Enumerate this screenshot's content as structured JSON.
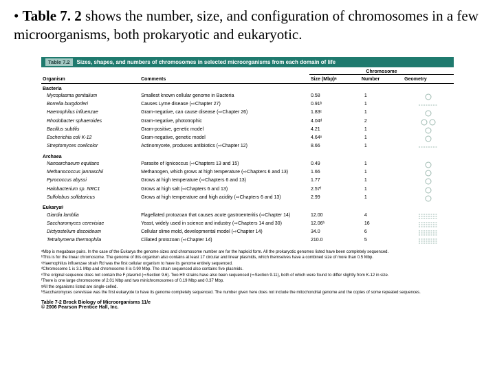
{
  "intro": {
    "bullet": "•",
    "bold": "Table 7. 2",
    "rest": " shows the number, size, and configuration of chromosomes in a few microorganisms, both prokaryotic and eukaryotic."
  },
  "table": {
    "header_label": "Table 7.2",
    "header_title": "Sizes, shapes, and numbers of chromosomes in selected microorganisms from each domain of life",
    "col_organism": "Organism",
    "col_comments": "Comments",
    "col_group": "Chromosome",
    "col_size": "Size (Mbp)ᵃ",
    "col_number": "Number",
    "col_geometry": "Geometry",
    "sections": [
      {
        "name": "Bacteria",
        "rows": [
          {
            "org": "Mycoplasma genitalium",
            "com": "Smallest known cellular genome in Bacteria",
            "size": "0.58",
            "num": "1",
            "geom": "circle"
          },
          {
            "org": "Borrelia burgdorferi",
            "com": "Causes Lyme disease (⇨Chapter 27)",
            "size": "0.91ᵇ",
            "num": "1",
            "geom": "linear"
          },
          {
            "org": "Haemophilus influenzae",
            "com": "Gram-negative, can cause disease (⇨Chapter 26)",
            "size": "1.83ᶜ",
            "num": "1",
            "geom": "circle"
          },
          {
            "org": "Rhodobacter sphaeroides",
            "com": "Gram-negative, phototrophic",
            "size": "4.04ᵈ",
            "num": "2",
            "geom": "circle2"
          },
          {
            "org": "Bacillus subtilis",
            "com": "Gram-positive, genetic model",
            "size": "4.21",
            "num": "1",
            "geom": "circle"
          },
          {
            "org": "Escherichia coli K-12",
            "com": "Gram-negative, genetic model",
            "size": "4.64ᵉ",
            "num": "1",
            "geom": "circle"
          },
          {
            "org": "Streptomyces coelicolor",
            "com": "Actinomycete, produces antibiotics (⇨Chapter 12)",
            "size": "8.66",
            "num": "1",
            "geom": "linear"
          }
        ]
      },
      {
        "name": "Archaea",
        "rows": [
          {
            "org": "Nanoarchaeum equitans",
            "com": "Parasite of Ignicoccus (⇨Chapters 13 and 15)",
            "size": "0.49",
            "num": "1",
            "geom": "circle"
          },
          {
            "org": "Methanococcus jannaschii",
            "com": "Methanogen, which grows at high temperature (⇨Chapters 6 and 13)",
            "size": "1.66",
            "num": "1",
            "geom": "circle"
          },
          {
            "org": "Pyrococcus abyssi",
            "com": "Grows at high temperature (⇨Chapters 6 and 13)",
            "size": "1.77",
            "num": "1",
            "geom": "circle"
          },
          {
            "org": "Halobacterium sp. NRC1",
            "com": "Grows at high salt (⇨Chapters 6 and 13)",
            "size": "2.57ᶠ",
            "num": "1",
            "geom": "circle"
          },
          {
            "org": "Sulfolobus solfataricus",
            "com": "Grows at high temperature and high acidity (⇨Chapters 6 and 13)",
            "size": "2.99",
            "num": "1",
            "geom": "circle"
          }
        ]
      },
      {
        "name": "Eukaryaᵍ",
        "rows": [
          {
            "org": "Giardia lamblia",
            "com": "Flagellated protozoan that causes acute gastroenteritis (⇨Chapter 14)",
            "size": "12.00",
            "num": "4",
            "geom": "linear4"
          },
          {
            "org": "Saccharomyces cerevisiae",
            "com": "Yeast, widely used in science and industry (⇨Chapters 14 and 30)",
            "size": "12.06ʰ",
            "num": "16",
            "geom": "linear4"
          },
          {
            "org": "Dictyostelium discoideum",
            "com": "Cellular slime mold, developmental model (⇨Chapter 14)",
            "size": "34.0",
            "num": "6",
            "geom": "linear4"
          },
          {
            "org": "Tetrahymena thermophila",
            "com": "Ciliated protozoan (⇨Chapter 14)",
            "size": "210.0",
            "num": "5",
            "geom": "linear4"
          }
        ]
      }
    ]
  },
  "footnotes": {
    "a": "ᵃMbp is megabase pairs. In the case of the Eukarya the genome sizes and chromosome number are for the haploid form. All the prokaryotic genomes listed have been completely sequenced.",
    "b": "ᵇThis is for the linear chromosome. The genome of this organism also contains at least 17 circular and linear plasmids, which themselves have a combined size of more than 0.5 Mbp.",
    "c": "ᶜHaemophilus influenzae strain Rd was the first cellular organism to have its genome entirely sequenced.",
    "d": "ᵈChromosome 1 is 3.1 Mbp and chromosome II is 0.90 Mbp. The strain sequenced also contains five plasmids.",
    "e": "ᵉThe original sequence does not contain the F plasmid (⇨Section 9.6). Two Hfr strains have also been sequenced (⇨Section 9.11), both of which were found to differ slightly from K-12 in size.",
    "f": "ᶠThere is one large chromosome of 2.01 Mbp and two minichromosomes of 0.19 Mbp and 0.37 Mbp.",
    "g": "ᵍAll the organisms listed are single-celled.",
    "h": "ʰSaccharomyces cerevisiae was the first eukaryote to have its genome completely sequenced. The number given here does not include the mitochondrial genome and the copies of some repeated sequences."
  },
  "credit": {
    "line1": "Table 7-2 Brock Biology of Microorganisms 11/e",
    "line2": "© 2006 Pearson Prentice Hall, Inc."
  },
  "colors": {
    "header_bg": "#1f7a6e",
    "label_bg": "#a3c9c3"
  },
  "geom_styles": {
    "stroke": "#9db9b0",
    "stroke_width": 1,
    "dash": "2,1.5"
  }
}
